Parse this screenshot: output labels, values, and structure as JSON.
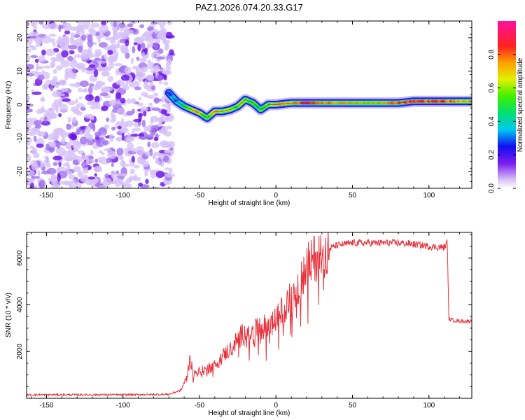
{
  "figure_title": "PAZ1.2026.074.20.33.G17",
  "chart_data": [
    {
      "type": "heatmap",
      "title": "PAZ1.2026.074.20.33.G17",
      "xlabel": "Height of straight line (km)",
      "ylabel": "Frequency (Hz)",
      "xlim": [
        -163,
        128
      ],
      "ylim": [
        -25,
        25
      ],
      "xticks": [
        -150,
        -100,
        -50,
        0,
        50,
        100
      ],
      "yticks": [
        -20,
        -10,
        0,
        10,
        20
      ],
      "xtick_labels": [
        "-150",
        "-100",
        "-50",
        "0",
        "50",
        "100"
      ],
      "ytick_labels": [
        "-20",
        "-10",
        "0",
        "10",
        "20"
      ],
      "noise_region_x": [
        -163,
        -68
      ],
      "ridge": {
        "x": [
          -70,
          -65,
          -60,
          -55,
          -50,
          -45,
          -40,
          -35,
          -30,
          -25,
          -20,
          -15,
          -10,
          -5,
          0,
          10,
          20,
          30,
          40,
          50,
          60,
          70,
          80,
          90,
          100,
          110,
          120,
          128
        ],
        "frequency": [
          3.5,
          1.0,
          -0.5,
          -1.5,
          -2.5,
          -4.0,
          -2.0,
          -2.0,
          -1.5,
          -0.5,
          1.5,
          0.5,
          -1.5,
          0.0,
          0.0,
          0.5,
          0.5,
          0.5,
          0.5,
          0.5,
          0.5,
          0.5,
          0.5,
          1.0,
          1.0,
          1.0,
          1.0,
          1.0
        ],
        "amplitude": [
          0.25,
          0.35,
          0.45,
          0.6,
          0.7,
          0.55,
          0.7,
          0.65,
          0.6,
          0.55,
          0.6,
          0.55,
          0.5,
          0.55,
          0.75,
          0.65,
          0.9,
          0.75,
          0.7,
          0.65,
          0.6,
          0.65,
          0.8,
          0.85,
          0.8,
          0.8,
          0.7,
          0.65
        ]
      },
      "colorbar": {
        "label": "Normalized spectral amplitude",
        "range": [
          0,
          1
        ],
        "ticks": [
          0.0,
          0.2,
          0.4,
          0.6,
          0.8
        ],
        "tick_labels": [
          "0.0",
          "0.2",
          "0.4",
          "0.6",
          "0.8"
        ]
      }
    },
    {
      "type": "line",
      "title": "",
      "xlabel": "Height of straight line (km)",
      "ylabel": "SNR (10 * v/v)",
      "xlim": [
        -163,
        128
      ],
      "ylim": [
        0,
        7100
      ],
      "xticks": [
        -150,
        -100,
        -50,
        0,
        50,
        100
      ],
      "xtick_labels": [
        "-150",
        "-100",
        "-50",
        "0",
        "50",
        "100"
      ],
      "yticks": [
        2000,
        4000,
        6000
      ],
      "ytick_labels": [
        "2000",
        "4000",
        "6000"
      ],
      "color": "#e8323c",
      "series": [
        {
          "name": "SNR",
          "x": [
            -163,
            -150,
            -100,
            -70,
            -62,
            -58,
            -56,
            -54,
            -50,
            -45,
            -40,
            -35,
            -30,
            -25,
            -20,
            -15,
            -10,
            -5,
            0,
            5,
            10,
            15,
            20,
            25,
            30,
            35,
            40,
            45,
            50,
            60,
            70,
            80,
            90,
            100,
            110,
            112,
            113,
            115,
            120,
            128
          ],
          "y": [
            150,
            150,
            150,
            170,
            350,
            1000,
            1700,
            1050,
            1150,
            1250,
            1400,
            1800,
            2100,
            2500,
            2900,
            2800,
            3000,
            3100,
            3300,
            3900,
            4300,
            5000,
            5600,
            6000,
            6200,
            6400,
            6550,
            6600,
            6650,
            6650,
            6650,
            6650,
            6600,
            6500,
            6450,
            6700,
            3400,
            3350,
            3300,
            3300
          ]
        }
      ]
    }
  ]
}
